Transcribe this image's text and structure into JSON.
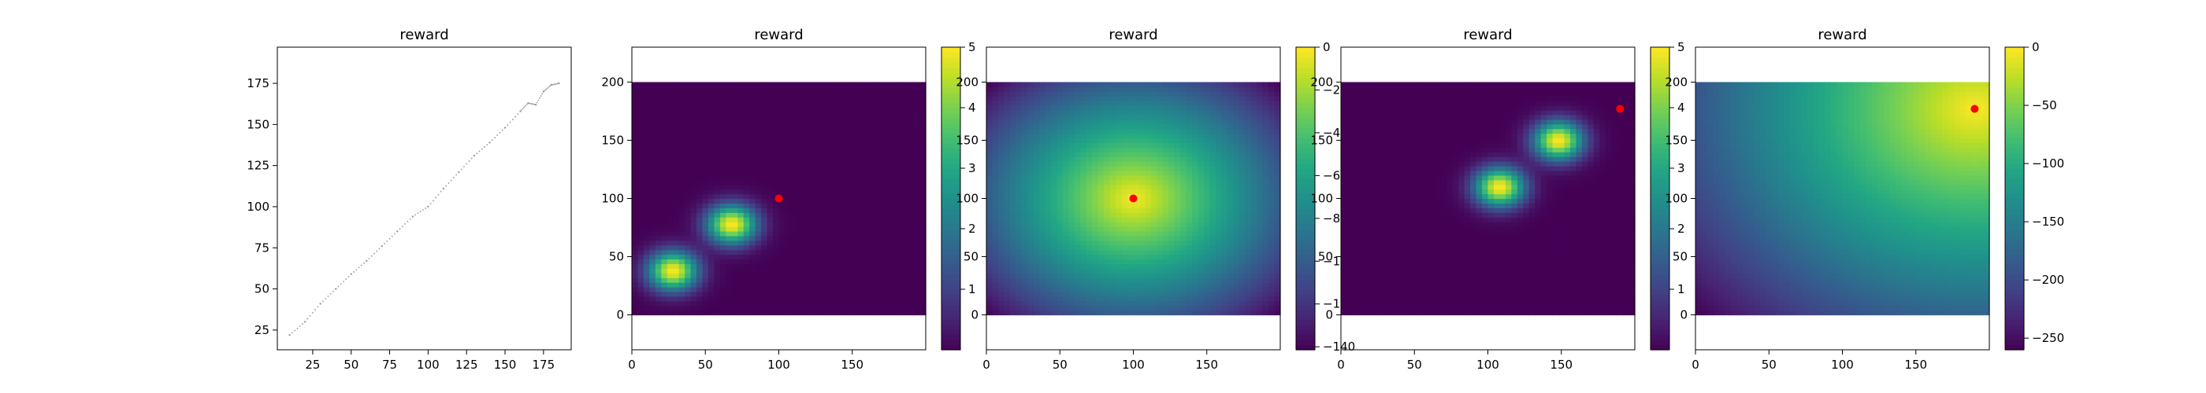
{
  "chart_data": [
    {
      "type": "scatter",
      "title": "reward",
      "xlabel": "",
      "ylabel": "",
      "xlim": [
        2,
        193
      ],
      "ylim": [
        13,
        197
      ],
      "xticks": [
        25,
        50,
        75,
        100,
        125,
        150,
        175
      ],
      "yticks": [
        25,
        50,
        75,
        100,
        125,
        150,
        175
      ],
      "marker_color": "#999999",
      "series": [
        {
          "x": [
            10,
            20,
            30,
            40,
            50,
            60,
            70,
            80,
            90,
            100,
            110,
            120,
            130,
            140,
            150,
            160,
            165,
            170,
            175,
            180,
            185
          ],
          "y": [
            22,
            30,
            41,
            50,
            59,
            67,
            76,
            85,
            94,
            100,
            111,
            121,
            131,
            139,
            148,
            158,
            163,
            162,
            170,
            174,
            175
          ]
        }
      ]
    },
    {
      "type": "heatmap",
      "title": "reward",
      "xlabel": "",
      "ylabel": "",
      "xlim": [
        0,
        200
      ],
      "ylim": [
        -30,
        230
      ],
      "grid_extent": [
        0,
        200,
        0,
        200
      ],
      "xticks": [
        0,
        50,
        100,
        150
      ],
      "yticks": [
        0,
        50,
        100,
        150,
        200
      ],
      "colormap": "viridis",
      "field": {
        "kind": "gaussians",
        "centers": [
          [
            28,
            38
          ],
          [
            68,
            78
          ]
        ],
        "peak": 5,
        "sigma": 11
      },
      "colorbar": {
        "min": 0,
        "max": 5,
        "ticks": [
          1,
          2,
          3,
          4,
          5
        ]
      },
      "point": {
        "x": 100,
        "y": 100,
        "color": "#ff0000"
      }
    },
    {
      "type": "heatmap",
      "title": "reward",
      "xlabel": "",
      "ylabel": "",
      "xlim": [
        0,
        200
      ],
      "ylim": [
        -30,
        230
      ],
      "grid_extent": [
        0,
        200,
        0,
        200
      ],
      "xticks": [
        0,
        50,
        100,
        150
      ],
      "yticks": [
        0,
        50,
        100,
        150,
        200
      ],
      "colormap": "viridis",
      "field": {
        "kind": "neg_distance",
        "center": [
          100,
          100
        ],
        "scale": 1
      },
      "colorbar": {
        "min": -141.4,
        "max": 0,
        "ticks": [
          -140,
          -120,
          -100,
          -80,
          -60,
          -40,
          -20,
          0
        ]
      },
      "point": {
        "x": 100,
        "y": 100,
        "color": "#ff0000"
      }
    },
    {
      "type": "heatmap",
      "title": "reward",
      "xlabel": "",
      "ylabel": "",
      "xlim": [
        0,
        200
      ],
      "ylim": [
        -30,
        230
      ],
      "grid_extent": [
        0,
        200,
        0,
        200
      ],
      "xticks": [
        0,
        50,
        100,
        150
      ],
      "yticks": [
        0,
        50,
        100,
        150,
        200
      ],
      "colormap": "viridis",
      "field": {
        "kind": "gaussians",
        "centers": [
          [
            108,
            110
          ],
          [
            148,
            150
          ]
        ],
        "peak": 5,
        "sigma": 11
      },
      "colorbar": {
        "min": 0,
        "max": 5,
        "ticks": [
          1,
          2,
          3,
          4,
          5
        ]
      },
      "point": {
        "x": 190,
        "y": 177,
        "color": "#ff0000"
      }
    },
    {
      "type": "heatmap",
      "title": "reward",
      "xlabel": "",
      "ylabel": "",
      "xlim": [
        0,
        200
      ],
      "ylim": [
        -30,
        230
      ],
      "grid_extent": [
        0,
        200,
        0,
        200
      ],
      "xticks": [
        0,
        50,
        100,
        150
      ],
      "yticks": [
        0,
        50,
        100,
        150,
        200
      ],
      "colormap": "viridis",
      "field": {
        "kind": "neg_distance",
        "center": [
          190,
          177
        ],
        "scale": 1
      },
      "colorbar": {
        "min": -260,
        "max": 0,
        "ticks": [
          -250,
          -200,
          -150,
          -100,
          -50,
          0
        ]
      },
      "point": {
        "x": 190,
        "y": 177,
        "color": "#ff0000"
      }
    }
  ]
}
